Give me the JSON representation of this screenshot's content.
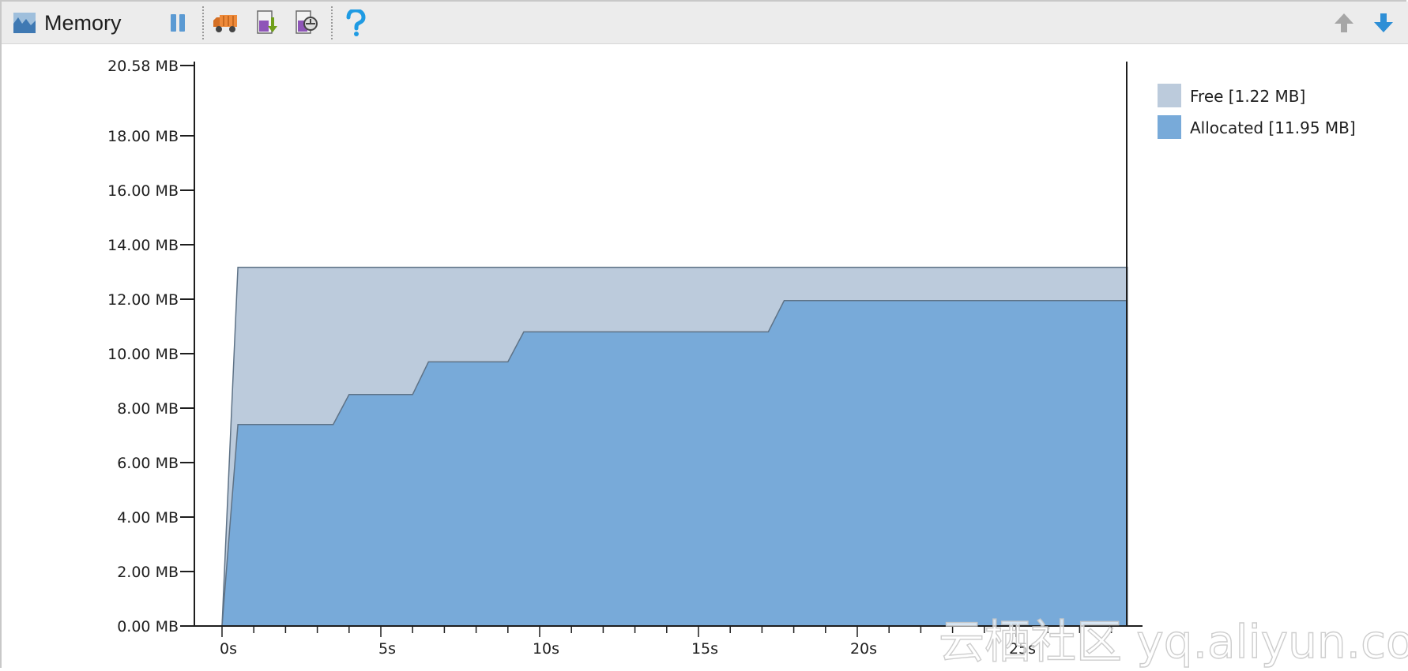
{
  "panel": {
    "title": "Memory",
    "icon": "memory-chart-icon"
  },
  "toolbar": {
    "buttons": [
      {
        "name": "pause",
        "icon": "pause-icon"
      },
      {
        "name": "garbage-collect",
        "icon": "garbage-truck-icon"
      },
      {
        "name": "dump-heap",
        "icon": "dump-heap-icon"
      },
      {
        "name": "allocation-tracking",
        "icon": "allocation-tracker-icon"
      },
      {
        "name": "help",
        "icon": "help-icon"
      }
    ],
    "right_buttons": [
      {
        "name": "previous",
        "icon": "arrow-up-icon"
      },
      {
        "name": "next",
        "icon": "arrow-down-icon"
      }
    ]
  },
  "colors": {
    "free": "#bccbdc",
    "allocated": "#78aad9",
    "outline": "#5e7286",
    "axis": "#1e1e1e",
    "toolbar_bg": "#ececec"
  },
  "chart_data": {
    "type": "area",
    "x_unit": "s",
    "xlim": [
      0,
      28.5
    ],
    "ylim": [
      0,
      20.58
    ],
    "x_ticks": [
      0,
      5,
      10,
      15,
      20,
      25
    ],
    "x_tick_labels": [
      "0s",
      "5s",
      "10s",
      "15s",
      "20s",
      "25s"
    ],
    "y_ticks": [
      0,
      2,
      4,
      6,
      8,
      10,
      12,
      14,
      16,
      18,
      20.58
    ],
    "y_tick_labels": [
      "0.00 MB",
      "2.00 MB",
      "4.00 MB",
      "6.00 MB",
      "8.00 MB",
      "10.00 MB",
      "12.00 MB",
      "14.00 MB",
      "16.00 MB",
      "18.00 MB",
      "20.58 MB"
    ],
    "stacked": true,
    "series": [
      {
        "name": "Allocated [11.95 MB]",
        "color": "#78aad9",
        "points": [
          [
            0,
            0
          ],
          [
            0.5,
            7.4
          ],
          [
            3.5,
            7.4
          ],
          [
            4.0,
            8.5
          ],
          [
            6.0,
            8.5
          ],
          [
            6.5,
            9.7
          ],
          [
            9.0,
            9.7
          ],
          [
            9.5,
            10.8
          ],
          [
            17.2,
            10.8
          ],
          [
            17.7,
            11.95
          ],
          [
            28.5,
            11.95
          ]
        ]
      },
      {
        "name": "Free [1.22 MB]",
        "color": "#bccbdc",
        "total_points": [
          [
            0,
            0
          ],
          [
            0.5,
            13.17
          ],
          [
            28.5,
            13.17
          ]
        ]
      }
    ],
    "legend_position": "top-right",
    "grid": false
  },
  "watermark": "云栖社区 yq.aliyun.com"
}
